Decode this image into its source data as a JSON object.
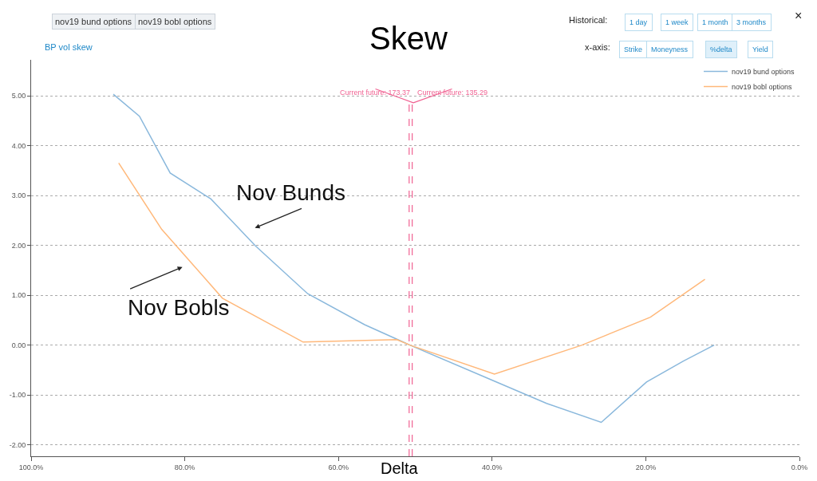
{
  "chart_data": {
    "type": "line",
    "title": "Skew",
    "xlabel": "Delta",
    "xlim": [
      100,
      0
    ],
    "xticks": [
      {
        "value": 100,
        "label": "100.0%"
      },
      {
        "value": 80,
        "label": "80.0%"
      },
      {
        "value": 60,
        "label": "60.0%"
      },
      {
        "value": 40,
        "label": "40.0%"
      },
      {
        "value": 20,
        "label": "20.0%"
      },
      {
        "value": 0,
        "label": "0.0%"
      }
    ],
    "ylim": [
      -2.23,
      5.72
    ],
    "yticks": [
      {
        "value": -2,
        "label": "-2.00"
      },
      {
        "value": -1,
        "label": "-1.00"
      },
      {
        "value": 0,
        "label": "0.00"
      },
      {
        "value": 1,
        "label": "1.00"
      },
      {
        "value": 2,
        "label": "2.00"
      },
      {
        "value": 3,
        "label": "3.00"
      },
      {
        "value": 4,
        "label": "4.00"
      },
      {
        "value": 5,
        "label": "5.00"
      }
    ],
    "grid": "y",
    "legend": "top right",
    "series": [
      {
        "name": "nov19 bund options",
        "color": "#8ab8dc",
        "x": [
          89.3,
          85.9,
          81.9,
          76.6,
          70.8,
          64.0,
          56.6,
          50.7,
          39.9,
          32.9,
          25.8,
          19.9,
          15.1,
          11.1
        ],
        "values": [
          5.03,
          4.59,
          3.45,
          2.93,
          1.99,
          1.03,
          0.41,
          0.0,
          -0.71,
          -1.17,
          -1.55,
          -0.74,
          -0.32,
          0.0
        ]
      },
      {
        "name": "nov19 bobl options",
        "color": "#ffb87a",
        "x": [
          88.6,
          83.0,
          75.1,
          64.6,
          52.4,
          50.7,
          39.7,
          28.3,
          19.4,
          12.3
        ],
        "values": [
          3.65,
          2.32,
          0.94,
          0.06,
          0.11,
          0.0,
          -0.58,
          0.0,
          0.56,
          1.32
        ]
      }
    ],
    "ref_lines": [
      {
        "axis": "x",
        "value": 50.8,
        "color": "#f06292",
        "line_style": "dashed"
      },
      {
        "axis": "x",
        "value": 50.4,
        "color": "#f06292",
        "line_style": "dashed"
      }
    ],
    "annotations": [
      "nov19 bund options",
      "nov19 bobl options",
      "BP vol skew",
      "Historical:",
      "1 day",
      "1 week",
      "1 month",
      "3 months",
      "x-axis:",
      "Strike",
      "Moneyness",
      "%delta",
      "Yield",
      "×",
      "Current future: 173.37",
      "Current future: 135.29",
      "Nov Bunds",
      "Nov Bobls"
    ]
  }
}
